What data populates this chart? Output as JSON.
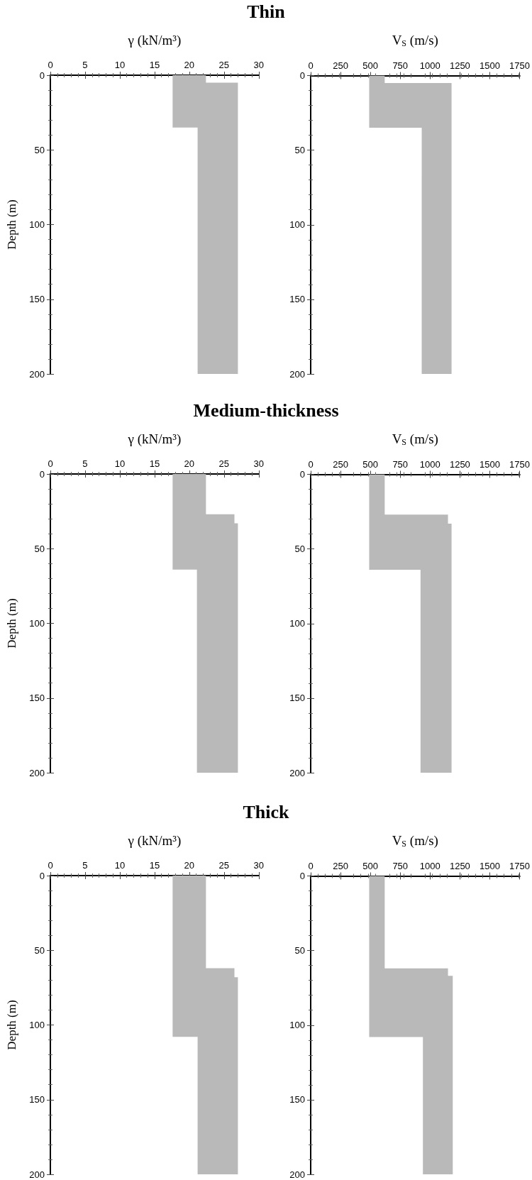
{
  "chart_data": [
    {
      "type": "area",
      "title": "Thin",
      "xlabel": "γ (kN/m³)",
      "ylabel": "Depth (m)",
      "xlim": [
        0,
        30
      ],
      "xticks": [
        0,
        5,
        10,
        15,
        20,
        25,
        30
      ],
      "ylim": [
        200,
        0
      ],
      "yticks": [
        0,
        50,
        100,
        150,
        200
      ],
      "series": [
        {
          "color": "#b9b9b9",
          "x": [
            17.6,
            17.6,
            21.2,
            21.2,
            27.0,
            27.0,
            22.4,
            22.4
          ],
          "values": [
            0,
            35,
            35,
            200,
            200,
            5,
            5,
            0
          ]
        }
      ]
    },
    {
      "type": "area",
      "xlabel": "V$_{S}$ (m/s)",
      "xlim": [
        0,
        1750
      ],
      "xticks": [
        0,
        250,
        500,
        750,
        1000,
        1250,
        1500,
        1750
      ],
      "ylim": [
        200,
        0
      ],
      "yticks": [
        0,
        50,
        100,
        150,
        200
      ],
      "series": [
        {
          "color": "#b9b9b9",
          "x": [
            490,
            490,
            930,
            930,
            1180,
            1180,
            620,
            620
          ],
          "values": [
            0,
            35,
            35,
            200,
            200,
            5,
            5,
            0
          ]
        }
      ]
    },
    {
      "type": "area",
      "title": "Medium-thickness",
      "xlabel": "γ (kN/m³)",
      "ylabel": "Depth (m)",
      "xlim": [
        0,
        30
      ],
      "xticks": [
        0,
        5,
        10,
        15,
        20,
        25,
        30
      ],
      "ylim": [
        200,
        0
      ],
      "yticks": [
        0,
        50,
        100,
        150,
        200
      ],
      "series": [
        {
          "color": "#b9b9b9",
          "x": [
            17.6,
            17.6,
            21.1,
            21.1,
            27.0,
            27.0,
            26.5,
            26.5,
            22.4,
            22.4
          ],
          "values": [
            0,
            64,
            64,
            200,
            200,
            33,
            33,
            27,
            27,
            0
          ]
        }
      ]
    },
    {
      "type": "area",
      "xlabel": "V$_{S}$ (m/s)",
      "xlim": [
        0,
        1750
      ],
      "xticks": [
        0,
        250,
        500,
        750,
        1000,
        1250,
        1500,
        1750
      ],
      "ylim": [
        200,
        0
      ],
      "yticks": [
        0,
        50,
        100,
        150,
        200
      ],
      "series": [
        {
          "color": "#b9b9b9",
          "x": [
            490,
            490,
            920,
            920,
            1180,
            1180,
            1150,
            1150,
            620,
            620
          ],
          "values": [
            0,
            64,
            64,
            200,
            200,
            33,
            33,
            27,
            27,
            0
          ]
        }
      ]
    },
    {
      "type": "area",
      "title": "Thick",
      "xlabel": "γ (kN/m³)",
      "ylabel": "Depth (m)",
      "xlim": [
        0,
        30
      ],
      "xticks": [
        0,
        5,
        10,
        15,
        20,
        25,
        30
      ],
      "ylim": [
        200,
        0
      ],
      "yticks": [
        0,
        50,
        100,
        150,
        200
      ],
      "series": [
        {
          "color": "#b9b9b9",
          "x": [
            17.6,
            17.6,
            21.2,
            21.2,
            27.0,
            27.0,
            26.5,
            26.5,
            22.4,
            22.4
          ],
          "values": [
            0,
            108,
            108,
            200,
            200,
            68,
            68,
            62,
            62,
            0
          ]
        }
      ]
    },
    {
      "type": "area",
      "xlabel": "V$_{S}$ (m/s)",
      "xlim": [
        0,
        1750
      ],
      "xticks": [
        0,
        250,
        500,
        750,
        1000,
        1250,
        1500,
        1750
      ],
      "ylim": [
        200,
        0
      ],
      "yticks": [
        0,
        50,
        100,
        150,
        200
      ],
      "series": [
        {
          "color": "#b9b9b9",
          "x": [
            490,
            490,
            940,
            940,
            1190,
            1190,
            1150,
            1150,
            620,
            620
          ],
          "values": [
            0,
            108,
            108,
            200,
            200,
            67,
            67,
            62,
            62,
            0
          ]
        }
      ]
    }
  ]
}
